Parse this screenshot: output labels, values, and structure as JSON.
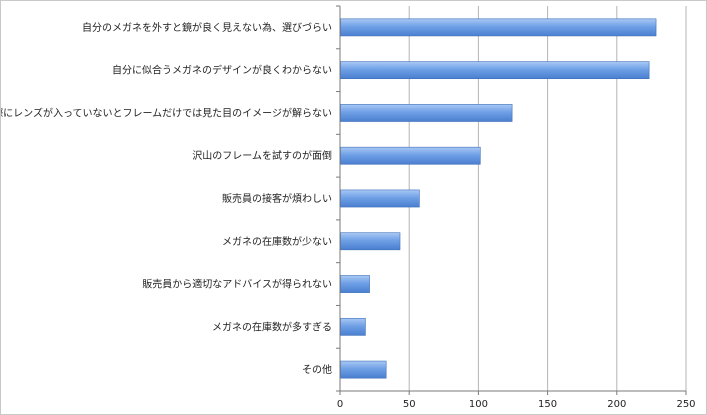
{
  "chart_data": {
    "type": "bar",
    "orientation": "horizontal",
    "categories": [
      "自分のメガネを外すと鏡が良く見えない為、選びづらい",
      "自分に似合うメガネのデザインが良くわからない",
      "実際にレンズが入っていないとフレームだけでは見た目のイメージが解らない",
      "沢山のフレームを試すのが面倒",
      "販売員の接客が煩わしい",
      "メガネの在庫数が少ない",
      "販売員から適切なアドバイスが得られない",
      "メガネの在庫数が多すぎる",
      "その他"
    ],
    "values": [
      228,
      223,
      124,
      101,
      57,
      43,
      21,
      18,
      33
    ],
    "xlim": [
      0,
      250
    ],
    "xticks": [
      0,
      50,
      100,
      150,
      200,
      250
    ],
    "grid": "vertical",
    "bar_color": "#6fa0e6",
    "title": "",
    "xlabel": "",
    "ylabel": ""
  }
}
